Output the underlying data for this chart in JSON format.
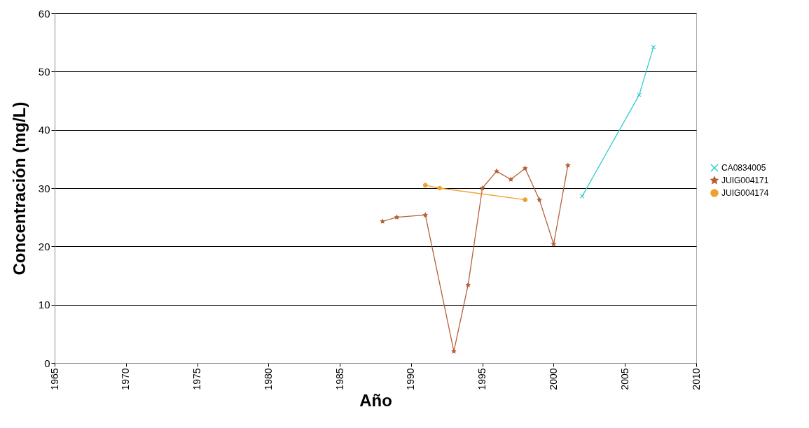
{
  "chart_data": {
    "type": "line",
    "xlabel": "Año",
    "ylabel": "Concentración (mg/L)",
    "xlim": [
      1965,
      2010
    ],
    "xticks": [
      1965,
      1970,
      1975,
      1980,
      1985,
      1990,
      1995,
      2000,
      2005,
      2010
    ],
    "ylim": [
      0,
      60
    ],
    "yticks": [
      0,
      10,
      20,
      30,
      40,
      50,
      60
    ],
    "grid": "y",
    "legend": "right",
    "series": [
      {
        "name": "CA0834005",
        "color": "#33cccc",
        "marker": "cross",
        "x": [
          2002,
          2006,
          2007
        ],
        "values": [
          28.6,
          46.0,
          54.2
        ]
      },
      {
        "name": "JUIG004171",
        "color": "#b5603a",
        "marker": "star",
        "x": [
          1988,
          1989,
          1991,
          1993,
          1994,
          1995,
          1996,
          1997,
          1998,
          1999,
          2000,
          2001
        ],
        "values": [
          24.3,
          25.0,
          25.4,
          2.0,
          13.4,
          30.0,
          32.9,
          31.5,
          33.4,
          28.0,
          20.4,
          33.9
        ]
      },
      {
        "name": "JUIG004174",
        "color": "#f0a030",
        "marker": "circle",
        "x": [
          1991,
          1992,
          1998
        ],
        "values": [
          30.5,
          30.0,
          28.0
        ]
      }
    ]
  }
}
